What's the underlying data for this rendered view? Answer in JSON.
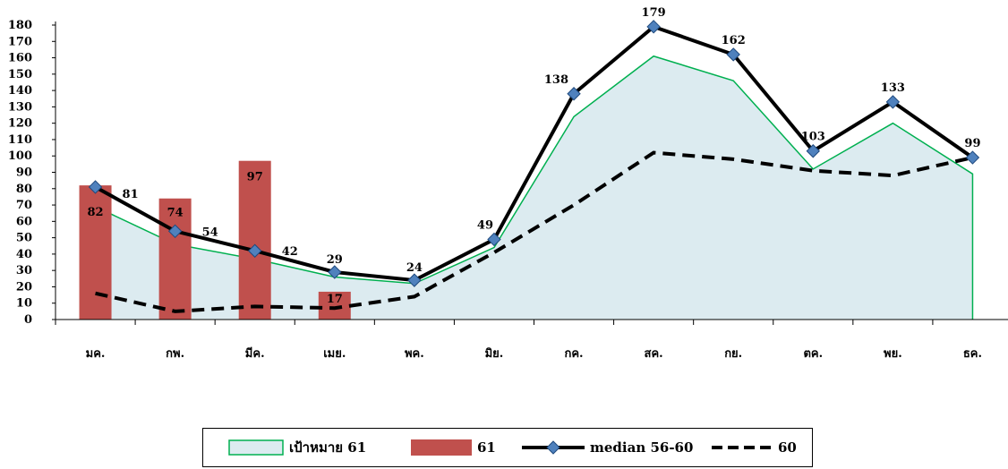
{
  "chart_data": {
    "type": "bar",
    "categories": [
      "มค.",
      "กพ.",
      "มีค.",
      "เมย.",
      "พค.",
      "มิย.",
      "กค.",
      "สค.",
      "กย.",
      "ตค.",
      "พย.",
      "ธค."
    ],
    "ylim": [
      0,
      180
    ],
    "yticks": [
      0,
      10,
      20,
      30,
      40,
      50,
      60,
      70,
      80,
      90,
      100,
      110,
      120,
      130,
      140,
      150,
      160,
      170,
      180
    ],
    "legend_position": "bottom",
    "series": [
      {
        "name": "เป้าหมาย 61",
        "kind": "area",
        "color": "#dcebf0",
        "stroke": "#00b050",
        "values": [
          69,
          46,
          37,
          26,
          22,
          44,
          124,
          161,
          146,
          92,
          120,
          89
        ]
      },
      {
        "name": "61",
        "kind": "bar",
        "color": "#c0504d",
        "values": [
          82,
          74,
          97,
          17,
          null,
          null,
          null,
          null,
          null,
          null,
          null,
          null
        ]
      },
      {
        "name": "median 56-60",
        "kind": "line-marker",
        "color": "#000000",
        "marker_color": "#4f81bd",
        "values": [
          81,
          54,
          42,
          29,
          24,
          49,
          138,
          179,
          162,
          103,
          133,
          99
        ]
      },
      {
        "name": "60",
        "kind": "dashed-line",
        "color": "#000000",
        "values": [
          16,
          5,
          8,
          7,
          14,
          41,
          70,
          102,
          98,
          91,
          88,
          99
        ]
      }
    ]
  }
}
